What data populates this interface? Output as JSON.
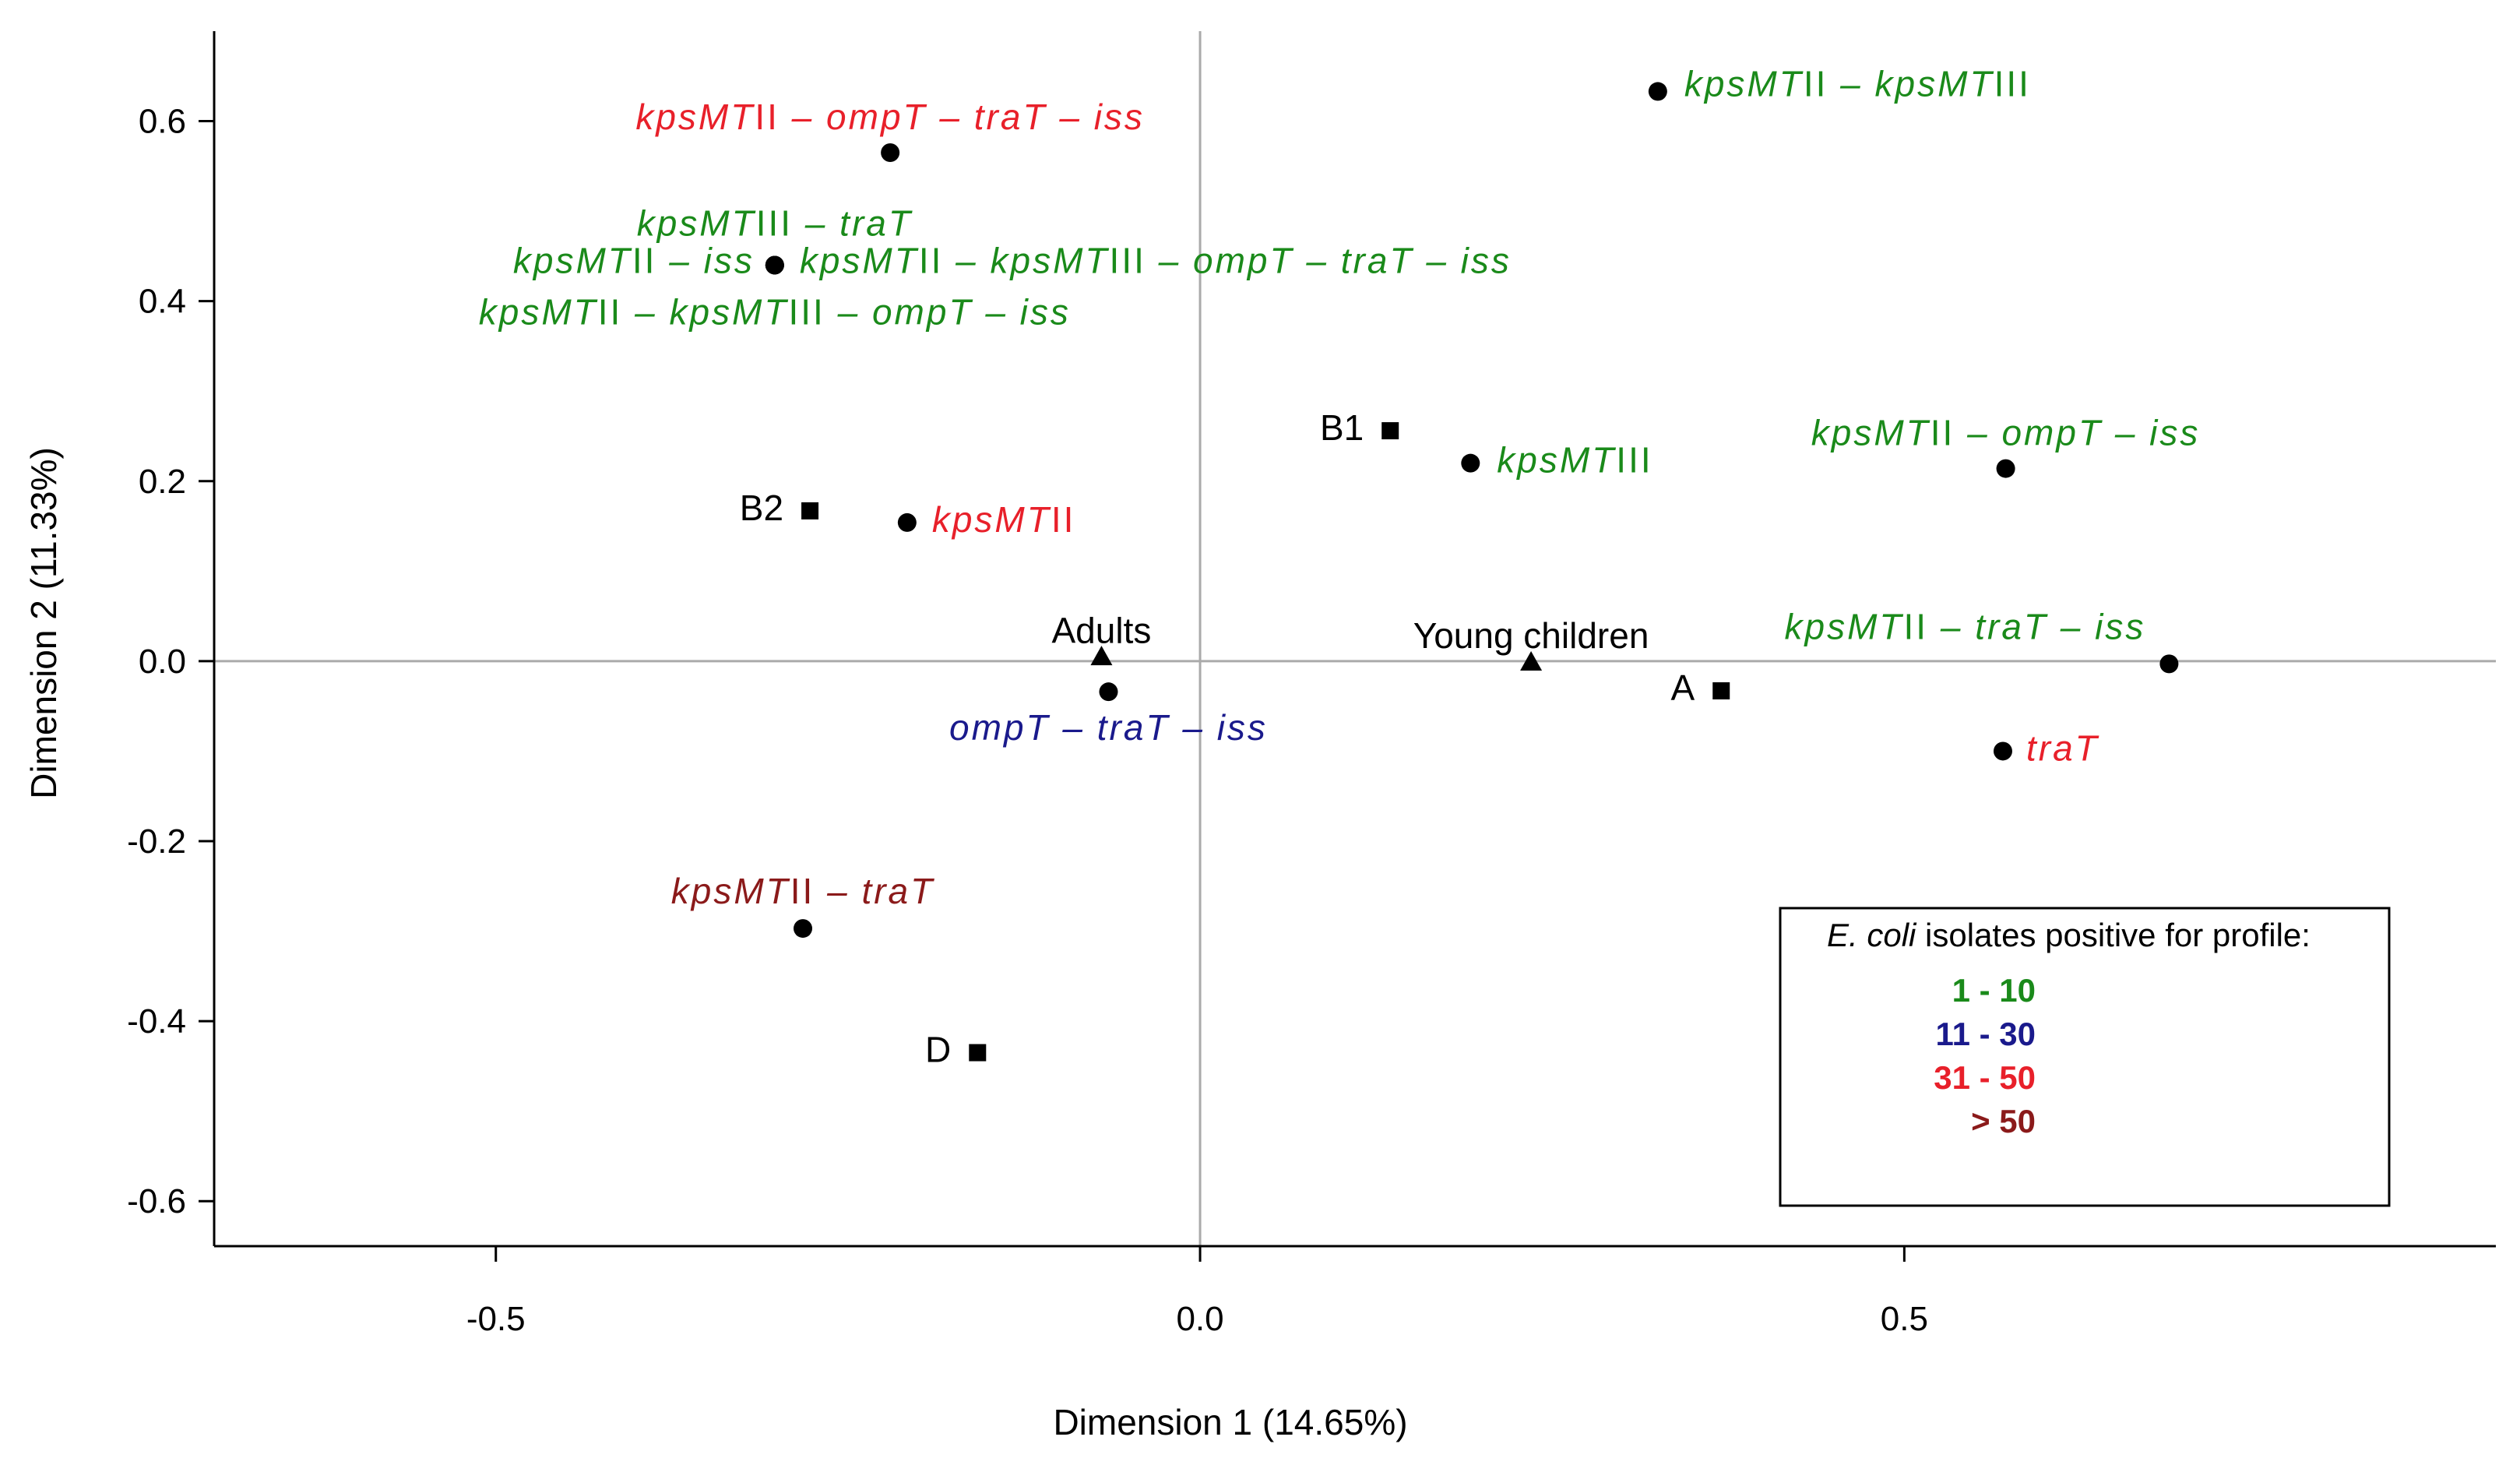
{
  "chart_data": {
    "type": "scatter",
    "xlabel": "Dimension 1 (14.65%)",
    "ylabel": "Dimension 2 (11.33%)",
    "xlim": [
      -0.7,
      0.92
    ],
    "ylim": [
      -0.65,
      0.7
    ],
    "xticks": [
      {
        "value": -0.5,
        "label": "-0.5"
      },
      {
        "value": 0.0,
        "label": "0.0"
      },
      {
        "value": 0.5,
        "label": "0.5"
      }
    ],
    "yticks": [
      {
        "value": 0.6,
        "label": "0.6"
      },
      {
        "value": 0.4,
        "label": "0.4"
      },
      {
        "value": 0.2,
        "label": "0.2"
      },
      {
        "value": 0.0,
        "label": "0.0"
      },
      {
        "value": -0.2,
        "label": "-0.2"
      },
      {
        "value": -0.4,
        "label": "-0.4"
      },
      {
        "value": -0.6,
        "label": "-0.6"
      }
    ],
    "reference_lines": {
      "x": 0,
      "y": 0
    },
    "profiles": [
      {
        "label": "kpsMTII – ompT – traT – iss",
        "x": -0.22,
        "y": 0.565,
        "color": "#e8202a",
        "anchor": "middle"
      },
      {
        "label": "kpsMTII – kpsMTIII",
        "x": 0.325,
        "y": 0.633,
        "color": "#1a8a1a",
        "anchor": "start"
      },
      {
        "label": "kpsMTIII – traT",
        "x": -0.302,
        "y": 0.44,
        "color": "#1a8a1a",
        "anchor": "middle"
      },
      {
        "label": "kpsMTII – iss",
        "x": -0.302,
        "y": 0.44,
        "color": "#1a8a1a",
        "anchor": "end"
      },
      {
        "label": "kpsMTII – kpsMTIII – ompT – traT – iss",
        "x": -0.302,
        "y": 0.44,
        "color": "#1a8a1a",
        "anchor": "start"
      },
      {
        "label": "kpsMTII – kpsMTIII – ompT – iss",
        "x": -0.302,
        "y": 0.44,
        "color": "#1a8a1a",
        "anchor": "middle"
      },
      {
        "label": "kpsMTIII",
        "x": 0.192,
        "y": 0.22,
        "color": "#1a8a1a",
        "anchor": "start"
      },
      {
        "label": "kpsMTII – ompT – iss",
        "x": 0.572,
        "y": 0.214,
        "color": "#1a8a1a",
        "anchor": "middle"
      },
      {
        "label": "kpsMTII",
        "x": -0.208,
        "y": 0.154,
        "color": "#e8202a",
        "anchor": "start"
      },
      {
        "label": "ompT – traT – iss",
        "x": -0.065,
        "y": -0.034,
        "color": "#1a1a8c",
        "anchor": "middle"
      },
      {
        "label": "kpsMTII – traT",
        "x": -0.282,
        "y": -0.297,
        "color": "#8b1a1a",
        "anchor": "middle"
      },
      {
        "label": "kpsMTII – traT – iss",
        "x": 0.688,
        "y": -0.003,
        "color": "#1a8a1a",
        "anchor": "end"
      },
      {
        "label": "traT",
        "x": 0.57,
        "y": -0.1,
        "color": "#e8202a",
        "anchor": "start"
      }
    ],
    "groups": [
      {
        "label": "B1",
        "x": 0.135,
        "y": 0.256,
        "marker": "square"
      },
      {
        "label": "B2",
        "x": -0.277,
        "y": 0.167,
        "marker": "square"
      },
      {
        "label": "A",
        "x": 0.37,
        "y": -0.033,
        "marker": "square"
      },
      {
        "label": "D",
        "x": -0.158,
        "y": -0.435,
        "marker": "square"
      },
      {
        "label": "Adults",
        "x": -0.07,
        "y": 0.005,
        "marker": "triangle"
      },
      {
        "label": "Young children",
        "x": 0.235,
        "y": -0.001,
        "marker": "triangle"
      }
    ],
    "legend": {
      "title_italic": "E. coli",
      "title_rest": " isolates positive for profile:",
      "placement": "bottom-right",
      "entries": [
        {
          "label": "1 - 10",
          "color": "#1a8a1a"
        },
        {
          "label": "11 - 30",
          "color": "#1a1a8c"
        },
        {
          "label": "31 - 50",
          "color": "#e8202a"
        },
        {
          "label": "> 50",
          "color": "#8b1a1a"
        }
      ]
    }
  }
}
